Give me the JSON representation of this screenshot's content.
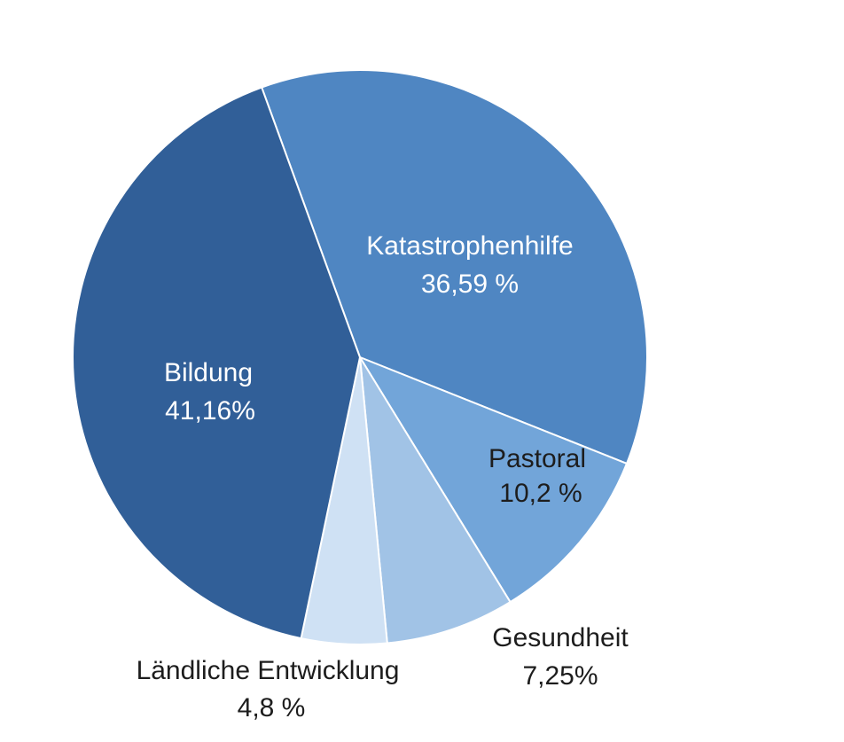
{
  "chart_data": {
    "type": "pie",
    "title": "",
    "slices": [
      {
        "name": "Katastrophenhilfe",
        "value": 36.59,
        "label": "36,59 %",
        "color": "#4f86c2",
        "text_color": "#ffffff"
      },
      {
        "name": "Pastoral",
        "value": 10.2,
        "label": "10,2 %",
        "color": "#72a5d9",
        "text_color": "#1d1d1d"
      },
      {
        "name": "Gesundheit",
        "value": 7.25,
        "label": "7,25%",
        "color": "#a1c3e6",
        "text_color": "#1d1d1d"
      },
      {
        "name": "Ländliche Entwicklung",
        "value": 4.8,
        "label": "4,8 %",
        "color": "#cfe1f4",
        "text_color": "#1d1d1d"
      },
      {
        "name": "Bildung",
        "value": 41.16,
        "label": "41,16%",
        "color": "#315f98",
        "text_color": "#ffffff"
      }
    ]
  }
}
